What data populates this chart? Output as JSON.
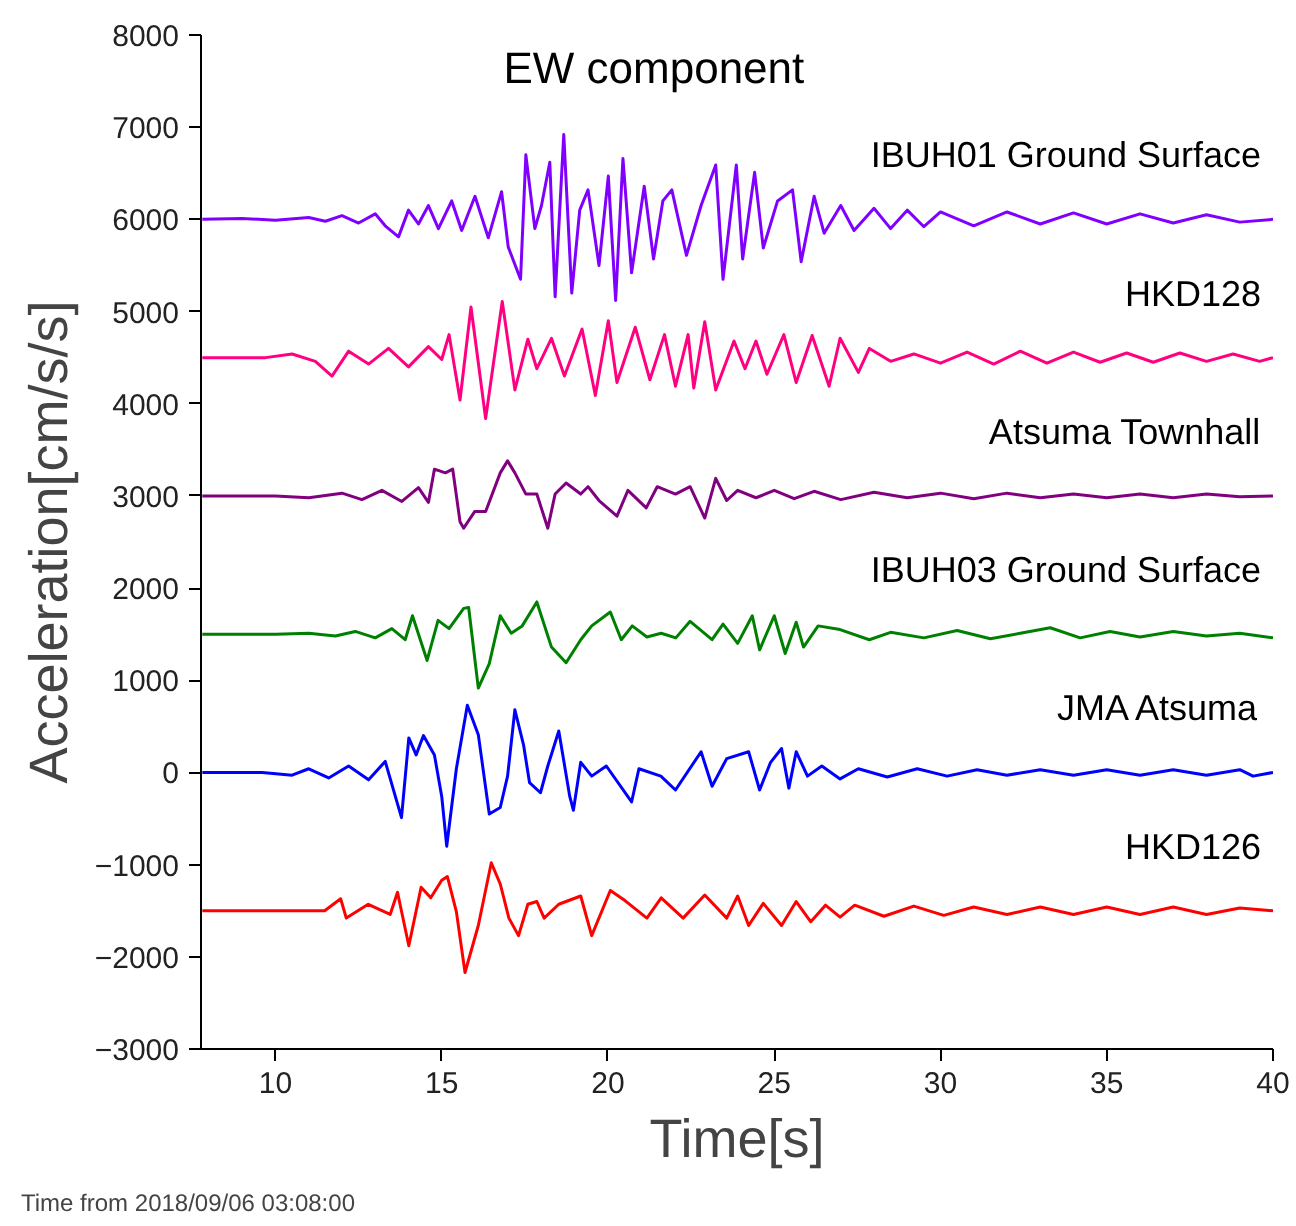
{
  "chart_data": {
    "type": "line",
    "title": "EW component",
    "xlabel": "Time[s]",
    "ylabel": "Acceleration[cm/s/s]",
    "annotations": [
      "Time from 2018/09/06 03:08:00"
    ],
    "xlim": [
      7.76,
      40
    ],
    "xticks": [
      10,
      15,
      20,
      25,
      30,
      35,
      40
    ],
    "ylim": [
      -3000,
      8000
    ],
    "yticks": [
      -3000,
      -2000,
      -1000,
      0,
      1000,
      2000,
      3000,
      4000,
      5000,
      6000,
      7000,
      8000
    ],
    "grid": false,
    "legend": false,
    "line_style": "solid",
    "marker": "none",
    "series": [
      {
        "name": "IBUH01 Ground Surface",
        "color": "#8000ff",
        "x": [
          7.8,
          9,
          10,
          11,
          11.5,
          12,
          12.5,
          13,
          13.3,
          13.7,
          14,
          14.3,
          14.6,
          14.9,
          15.3,
          15.6,
          16,
          16.4,
          16.8,
          17.0,
          17.37,
          17.53,
          17.8,
          18.0,
          18.25,
          18.41,
          18.67,
          18.91,
          19.15,
          19.4,
          19.73,
          20.01,
          20.23,
          20.45,
          20.71,
          21.09,
          21.37,
          21.65,
          21.92,
          22.36,
          22.8,
          23.24,
          23.46,
          23.86,
          24.05,
          24.41,
          24.67,
          25.1,
          25.55,
          25.81,
          26.2,
          26.5,
          27,
          27.4,
          28,
          28.5,
          29,
          29.5,
          30,
          31,
          32,
          33,
          34,
          35,
          36,
          37,
          38,
          39,
          40
        ],
        "values": [
          6000,
          6010,
          5990,
          6020,
          5980,
          6040,
          5960,
          6060,
          5930,
          5810,
          6100,
          5950,
          6150,
          5900,
          6200,
          5880,
          6250,
          5800,
          6300,
          5700,
          5350,
          6700,
          5900,
          6150,
          6620,
          5160,
          6920,
          5200,
          6100,
          6320,
          5500,
          6470,
          5120,
          6660,
          5420,
          6360,
          5570,
          6200,
          6320,
          5610,
          6150,
          6590,
          5350,
          6590,
          5570,
          6510,
          5690,
          6200,
          6320,
          5540,
          6250,
          5850,
          6150,
          5880,
          6120,
          5900,
          6100,
          5920,
          6080,
          5930,
          6080,
          5950,
          6070,
          5950,
          6060,
          5960,
          6050,
          5970,
          6000
        ]
      },
      {
        "name": "HKD128",
        "color": "#ff0080",
        "x": [
          7.8,
          9.7,
          10.5,
          11.2,
          11.7,
          12.2,
          12.8,
          13.4,
          14,
          14.6,
          15.0,
          15.22,
          15.55,
          15.88,
          16.32,
          16.82,
          17.2,
          17.59,
          17.86,
          18.3,
          18.69,
          19.22,
          19.62,
          20.01,
          20.27,
          20.82,
          21.26,
          21.7,
          22.03,
          22.41,
          22.58,
          22.91,
          23.24,
          23.79,
          24.12,
          24.45,
          24.78,
          25.29,
          25.66,
          26.14,
          26.65,
          26.98,
          27.53,
          27.86,
          28.5,
          29.2,
          30,
          30.8,
          31.6,
          32.4,
          33.2,
          34,
          34.8,
          35.6,
          36.4,
          37.2,
          38,
          38.8,
          39.6,
          40
        ],
        "values": [
          4500,
          4500,
          4540,
          4460,
          4300,
          4570,
          4430,
          4600,
          4400,
          4620,
          4480,
          4750,
          4040,
          5050,
          3840,
          5110,
          4150,
          4700,
          4380,
          4710,
          4300,
          4810,
          4090,
          4900,
          4230,
          4830,
          4260,
          4750,
          4190,
          4750,
          4170,
          4890,
          4150,
          4680,
          4380,
          4680,
          4320,
          4750,
          4230,
          4740,
          4190,
          4710,
          4340,
          4600,
          4460,
          4540,
          4440,
          4560,
          4430,
          4570,
          4440,
          4560,
          4450,
          4550,
          4450,
          4550,
          4460,
          4540,
          4460,
          4500
        ]
      },
      {
        "name": "Atsuma Townhall",
        "color": "#800080",
        "x": [
          7.8,
          10,
          11,
          12,
          12.6,
          13.2,
          13.8,
          14.3,
          14.6,
          14.78,
          15.11,
          15.33,
          15.55,
          15.66,
          15.99,
          16.32,
          16.76,
          16.98,
          17.2,
          17.53,
          17.86,
          18.19,
          18.41,
          18.74,
          19.18,
          19.4,
          19.73,
          20.27,
          20.6,
          21.15,
          21.48,
          22.03,
          22.47,
          22.91,
          23.24,
          23.57,
          23.9,
          24.45,
          25,
          25.6,
          26.2,
          27,
          28,
          29,
          30,
          31,
          32,
          33,
          34,
          35,
          36,
          37,
          38,
          39,
          40
        ],
        "values": [
          3000,
          3000,
          2980,
          3030,
          2960,
          3060,
          2940,
          3090,
          2930,
          3290,
          3250,
          3290,
          2720,
          2650,
          2830,
          2830,
          3250,
          3380,
          3250,
          3020,
          3020,
          2650,
          3020,
          3140,
          3020,
          3100,
          2950,
          2780,
          3060,
          2870,
          3100,
          3020,
          3100,
          2760,
          3190,
          2950,
          3060,
          2980,
          3060,
          2970,
          3050,
          2960,
          3040,
          2980,
          3030,
          2970,
          3030,
          2980,
          3020,
          2980,
          3020,
          2980,
          3020,
          2990,
          3000
        ]
      },
      {
        "name": "IBUH03 Ground Surface",
        "color": "#008000",
        "x": [
          7.8,
          10,
          11,
          11.8,
          12.4,
          13,
          13.5,
          13.9,
          14.12,
          14.56,
          14.89,
          15.22,
          15.66,
          15.81,
          16.1,
          16.43,
          16.76,
          17.09,
          17.42,
          17.86,
          18.3,
          18.74,
          19.18,
          19.51,
          20.07,
          20.4,
          20.73,
          21.17,
          21.6,
          22.04,
          22.47,
          23.13,
          23.46,
          23.9,
          24.34,
          24.56,
          25,
          25.33,
          25.66,
          25.88,
          26.32,
          26.98,
          27.86,
          28.5,
          29.5,
          30.5,
          31.5,
          32.4,
          33.3,
          34.2,
          35.1,
          36,
          37,
          38,
          39,
          40
        ],
        "values": [
          1500,
          1500,
          1510,
          1480,
          1530,
          1460,
          1560,
          1440,
          1700,
          1215,
          1650,
          1560,
          1780,
          1790,
          915,
          1180,
          1700,
          1510,
          1590,
          1850,
          1360,
          1190,
          1440,
          1590,
          1740,
          1440,
          1590,
          1470,
          1510,
          1460,
          1640,
          1440,
          1610,
          1400,
          1700,
          1330,
          1700,
          1290,
          1630,
          1360,
          1590,
          1550,
          1440,
          1520,
          1460,
          1540,
          1450,
          1510,
          1570,
          1460,
          1530,
          1470,
          1530,
          1480,
          1510,
          1460
        ]
      },
      {
        "name": "JMA Atsuma",
        "color": "#0000ff",
        "x": [
          7.8,
          9.6,
          10.5,
          11,
          11.6,
          12.2,
          12.8,
          13.3,
          13.79,
          14.01,
          14.23,
          14.45,
          14.78,
          15.0,
          15.15,
          15.44,
          15.77,
          16.1,
          16.43,
          16.76,
          16.98,
          17.2,
          17.46,
          17.64,
          17.97,
          18.19,
          18.52,
          18.85,
          18.96,
          19.18,
          19.51,
          19.95,
          20.71,
          20.93,
          21.59,
          22.03,
          22.8,
          23.13,
          23.57,
          24.23,
          24.56,
          24.89,
          25.22,
          25.44,
          25.66,
          26,
          26.43,
          26.98,
          27.53,
          28.4,
          29.3,
          30.2,
          31.1,
          32,
          33,
          34,
          35,
          36,
          37,
          38,
          39,
          39.4,
          40
        ],
        "values": [
          0,
          0,
          -30,
          40,
          -60,
          70,
          -80,
          120,
          -490,
          375,
          190,
          400,
          190,
          -260,
          -800,
          40,
          730,
          410,
          -450,
          -380,
          -40,
          680,
          300,
          -110,
          -220,
          70,
          450,
          -260,
          -410,
          110,
          -40,
          70,
          -320,
          40,
          -40,
          -190,
          225,
          -150,
          150,
          225,
          -190,
          110,
          260,
          -170,
          225,
          -40,
          70,
          -70,
          40,
          -50,
          40,
          -40,
          30,
          -30,
          30,
          -30,
          30,
          -30,
          30,
          -30,
          30,
          -40,
          0
        ]
      },
      {
        "name": "HKD126",
        "color": "#ff0000",
        "x": [
          7.8,
          11.48,
          11.96,
          12.13,
          12.79,
          13.45,
          13.67,
          14.01,
          14.38,
          14.67,
          15.0,
          15.17,
          15.44,
          15.7,
          16.1,
          16.49,
          16.76,
          17.02,
          17.31,
          17.59,
          17.86,
          18.08,
          18.52,
          19.18,
          19.51,
          20.07,
          20.51,
          21.17,
          21.6,
          22.26,
          22.91,
          23.57,
          23.9,
          24.23,
          24.67,
          25.22,
          25.66,
          26.1,
          26.54,
          26.98,
          27.42,
          28.3,
          29.2,
          30.1,
          31,
          32,
          33,
          34,
          35,
          36,
          37,
          38,
          39,
          40
        ],
        "values": [
          -1500,
          -1500,
          -1370,
          -1580,
          -1430,
          -1540,
          -1300,
          -1880,
          -1245,
          -1360,
          -1170,
          -1130,
          -1510,
          -2170,
          -1660,
          -980,
          -1210,
          -1580,
          -1770,
          -1430,
          -1400,
          -1580,
          -1430,
          -1340,
          -1770,
          -1280,
          -1390,
          -1580,
          -1360,
          -1580,
          -1330,
          -1580,
          -1340,
          -1660,
          -1420,
          -1660,
          -1400,
          -1620,
          -1440,
          -1570,
          -1440,
          -1560,
          -1450,
          -1550,
          -1460,
          -1540,
          -1460,
          -1540,
          -1460,
          -1540,
          -1460,
          -1540,
          -1470,
          -1500
        ]
      }
    ]
  }
}
